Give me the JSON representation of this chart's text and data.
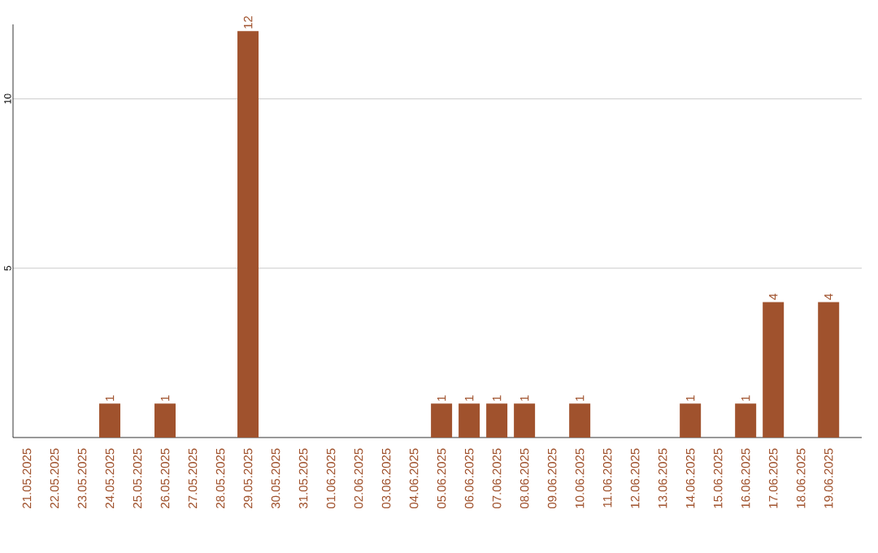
{
  "chart_data": {
    "type": "bar",
    "categories": [
      "21.05.2025",
      "22.05.2025",
      "23.05.2025",
      "24.05.2025",
      "25.05.2025",
      "26.05.2025",
      "27.05.2025",
      "28.05.2025",
      "29.05.2025",
      "30.05.2025",
      "31.05.2025",
      "01.06.2025",
      "02.06.2025",
      "03.06.2025",
      "04.06.2025",
      "05.06.2025",
      "06.06.2025",
      "07.06.2025",
      "08.06.2025",
      "09.06.2025",
      "10.06.2025",
      "11.06.2025",
      "12.06.2025",
      "13.06.2025",
      "14.06.2025",
      "15.06.2025",
      "16.06.2025",
      "17.06.2025",
      "18.06.2025",
      "19.06.2025"
    ],
    "values": [
      0,
      0,
      0,
      1,
      0,
      1,
      0,
      0,
      12,
      0,
      0,
      0,
      0,
      0,
      0,
      1,
      1,
      1,
      1,
      0,
      1,
      0,
      0,
      0,
      1,
      0,
      1,
      4,
      0,
      4
    ],
    "value_labels": [
      null,
      null,
      null,
      "1",
      null,
      "1",
      null,
      null,
      "12",
      null,
      null,
      null,
      null,
      null,
      null,
      "1",
      "1",
      "1",
      "1",
      null,
      "1",
      null,
      null,
      null,
      "1",
      null,
      "1",
      "4",
      null,
      "4"
    ],
    "color": "#a0522d",
    "ylim": [
      0,
      12.2
    ],
    "yticks": [
      5,
      10
    ],
    "grid": "y"
  }
}
